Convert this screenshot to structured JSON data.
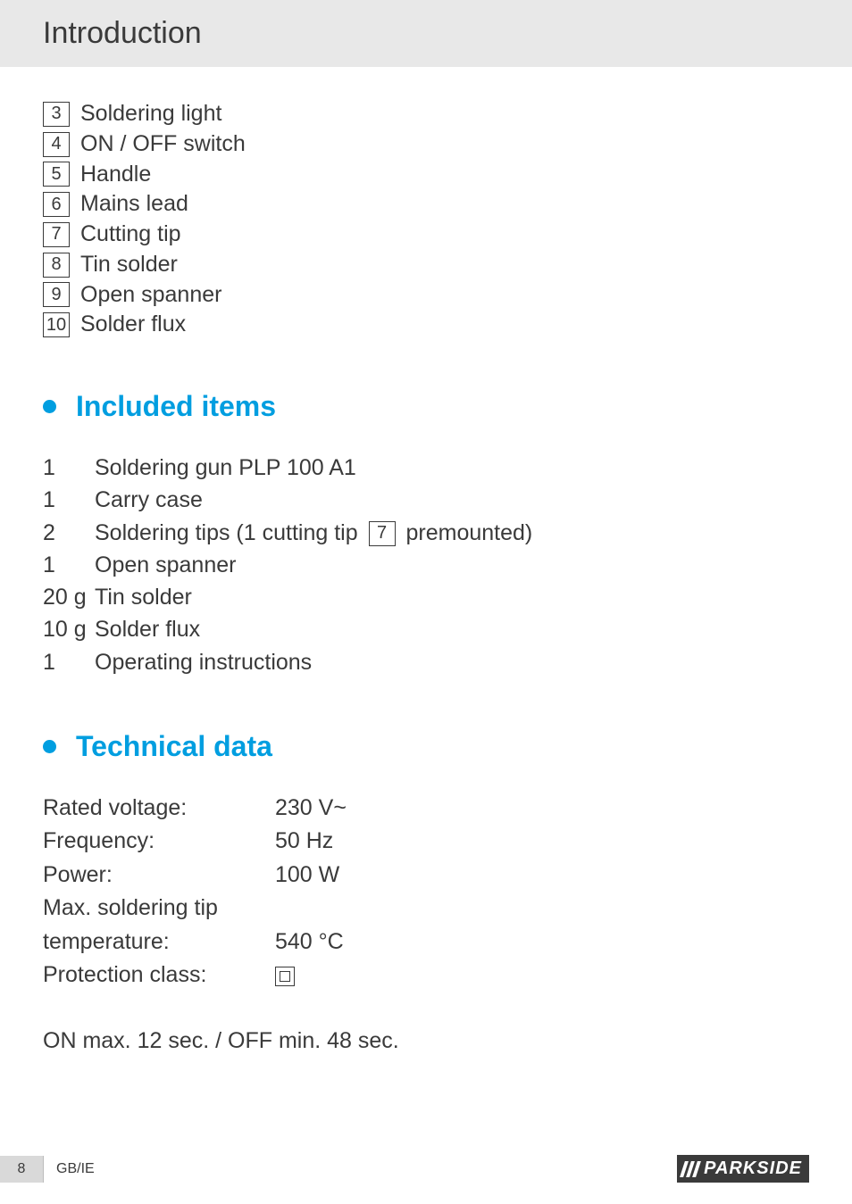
{
  "header": {
    "title": "Introduction"
  },
  "parts": [
    {
      "num": "3",
      "label": "Soldering light"
    },
    {
      "num": "4",
      "label": "ON / OFF switch"
    },
    {
      "num": "5",
      "label": "Handle"
    },
    {
      "num": "6",
      "label": "Mains lead"
    },
    {
      "num": "7",
      "label": "Cutting tip"
    },
    {
      "num": "8",
      "label": "Tin solder"
    },
    {
      "num": "9",
      "label": "Open spanner"
    },
    {
      "num": "10",
      "label": "Solder flux"
    }
  ],
  "sections": {
    "included": {
      "heading": "Included items"
    },
    "technical": {
      "heading": "Technical data"
    }
  },
  "included": [
    {
      "qty": "1",
      "text": "Soldering gun PLP 100 A1"
    },
    {
      "qty": "1",
      "text": "Carry case"
    },
    {
      "qty": "2",
      "pre": "Soldering tips (1 cutting tip ",
      "ref": "7",
      "post": " premounted)"
    },
    {
      "qty": "1",
      "text": "Open spanner"
    },
    {
      "qty": "20 g",
      "text": "Tin solder"
    },
    {
      "qty": "10 g",
      "text": "Solder flux"
    },
    {
      "qty": "1",
      "text": "Operating instructions"
    }
  ],
  "technical": [
    {
      "label": "Rated voltage:",
      "value": "230 V~"
    },
    {
      "label": "Frequency:",
      "value": "50 Hz"
    },
    {
      "label": "Power:",
      "value": "100 W"
    },
    {
      "label": "Max. soldering tip",
      "value": ""
    },
    {
      "label": "temperature:",
      "value": "540 °C"
    },
    {
      "label": "Protection class:",
      "value_is_icon": true
    }
  ],
  "on_off_note": "ON max. 12 sec. / OFF min. 48 sec.",
  "footer": {
    "page": "8",
    "region": "GB/IE",
    "brand": "PARKSIDE"
  },
  "colors": {
    "accent": "#009ee0",
    "text": "#3a3a3a",
    "header_bg": "#e8e8e8"
  }
}
